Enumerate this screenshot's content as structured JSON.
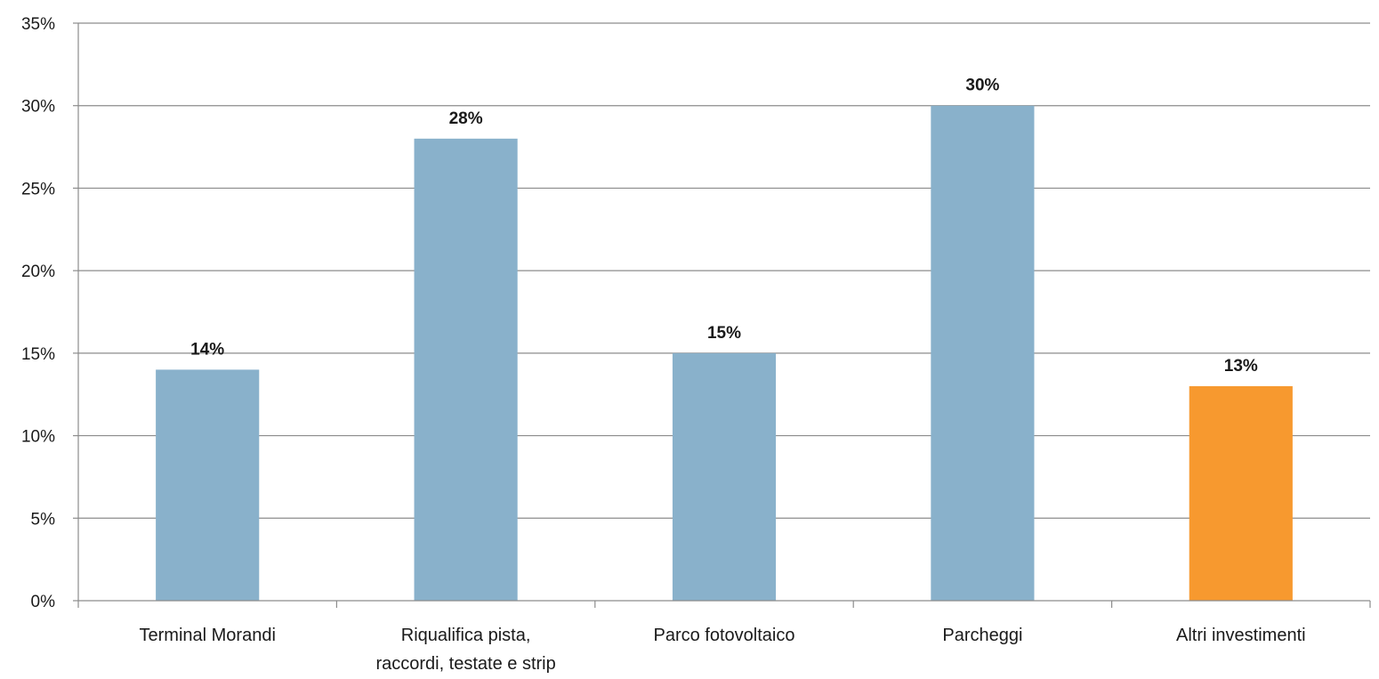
{
  "chart_data": {
    "type": "bar",
    "title": "",
    "xlabel": "",
    "ylabel": "",
    "categories": [
      [
        "Terminal Morandi"
      ],
      [
        "Riqualifica pista,",
        "raccordi, testate e strip"
      ],
      [
        "Parco fotovoltaico"
      ],
      [
        "Parcheggi"
      ],
      [
        "Altri investimenti"
      ]
    ],
    "values": [
      14,
      28,
      15,
      30,
      13
    ],
    "value_labels": [
      "14%",
      "28%",
      "15%",
      "30%",
      "13%"
    ],
    "bar_colors": [
      "#89b1cb",
      "#89b1cb",
      "#89b1cb",
      "#89b1cb",
      "#f7992f"
    ],
    "ylim": [
      0,
      35
    ],
    "yticks": [
      0,
      5,
      10,
      15,
      20,
      25,
      30,
      35
    ],
    "ytick_labels": [
      "0%",
      "5%",
      "10%",
      "15%",
      "20%",
      "25%",
      "30%",
      "35%"
    ],
    "grid": true,
    "legend": "none"
  }
}
